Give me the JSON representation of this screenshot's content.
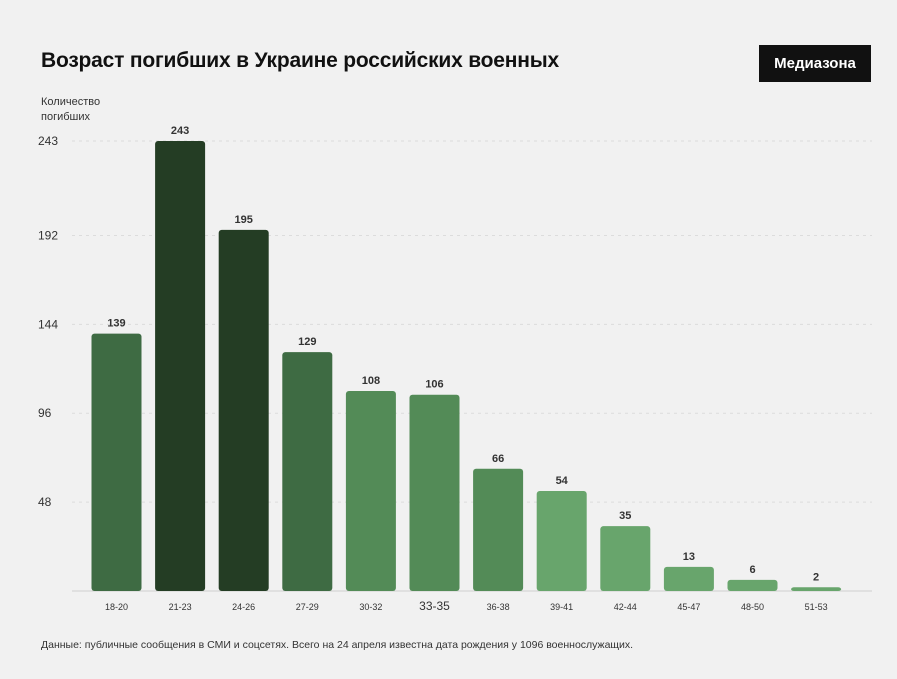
{
  "header": {
    "title": "Возраст погибших в Украине российских военных",
    "logo": "Медиазона"
  },
  "footer": {
    "source": "Данные: публичные сообщения в СМИ и соцсетях. Всего на 24 апреля известна дата рождения у 1096 военнослужащих."
  },
  "chart_data": {
    "type": "bar",
    "title": "Возраст погибших в Украине российских военных",
    "ylabel": "Количество погибших",
    "xlabel": "",
    "categories": [
      "18-20",
      "21-23",
      "24-26",
      "27-29",
      "30-32",
      "33-35",
      "36-38",
      "39-41",
      "42-44",
      "45-47",
      "48-50",
      "51-53"
    ],
    "values": [
      139,
      243,
      195,
      129,
      108,
      106,
      66,
      54,
      35,
      13,
      6,
      2
    ],
    "y_ticks": [
      48,
      96,
      144,
      192,
      243
    ],
    "ylim": [
      0,
      243
    ],
    "grid": true,
    "bar_colors": [
      "#3e6b43",
      "#243d24",
      "#243d24",
      "#3e6b43",
      "#538b57",
      "#538b57",
      "#538b57",
      "#68a56c",
      "#68a56c",
      "#68a56c",
      "#68a56c",
      "#68a56c"
    ]
  }
}
